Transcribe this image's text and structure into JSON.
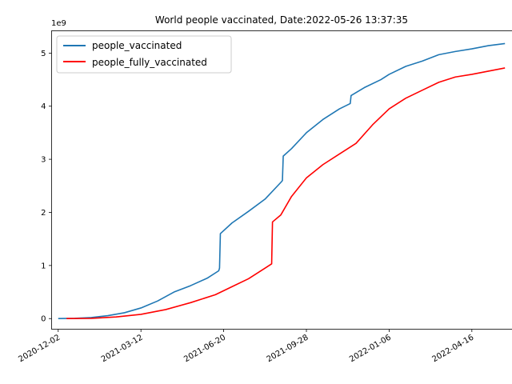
{
  "chart_data": {
    "type": "line",
    "title": "World people vaccinated, Date:2022-05-26 13:37:35",
    "xlabel": "",
    "ylabel": "",
    "y_multiplier_label": "1e9",
    "ylim": [
      -0.2,
      5.42
    ],
    "xlim": [
      "2020-11-24",
      "2022-06-04"
    ],
    "grid": false,
    "legend_position": "top-left",
    "x_ticks": [
      "2020-12-02",
      "2021-03-12",
      "2021-06-20",
      "2021-09-28",
      "2022-01-06",
      "2022-04-16"
    ],
    "y_ticks": [
      0,
      1,
      2,
      3,
      4,
      5
    ],
    "series": [
      {
        "name": "people_vaccinated",
        "color": "#1f77b4",
        "points": [
          [
            "2020-12-02",
            0.0
          ],
          [
            "2020-12-22",
            0.005
          ],
          [
            "2021-01-11",
            0.02
          ],
          [
            "2021-01-31",
            0.055
          ],
          [
            "2021-02-20",
            0.11
          ],
          [
            "2021-03-12",
            0.2
          ],
          [
            "2021-04-01",
            0.33
          ],
          [
            "2021-04-21",
            0.5
          ],
          [
            "2021-05-11",
            0.62
          ],
          [
            "2021-05-31",
            0.76
          ],
          [
            "2021-06-14",
            0.9
          ],
          [
            "2021-06-15",
            0.95
          ],
          [
            "2021-06-16",
            1.6
          ],
          [
            "2021-06-30",
            1.8
          ],
          [
            "2021-07-20",
            2.02
          ],
          [
            "2021-08-09",
            2.25
          ],
          [
            "2021-08-29",
            2.58
          ],
          [
            "2021-08-30",
            2.6
          ],
          [
            "2021-08-31",
            3.06
          ],
          [
            "2021-09-10",
            3.2
          ],
          [
            "2021-09-28",
            3.5
          ],
          [
            "2021-10-18",
            3.75
          ],
          [
            "2021-11-07",
            3.95
          ],
          [
            "2021-11-20",
            4.05
          ],
          [
            "2021-11-21",
            4.2
          ],
          [
            "2021-12-07",
            4.35
          ],
          [
            "2021-12-27",
            4.5
          ],
          [
            "2022-01-06",
            4.6
          ],
          [
            "2022-01-26",
            4.75
          ],
          [
            "2022-02-15",
            4.85
          ],
          [
            "2022-03-07",
            4.97
          ],
          [
            "2022-03-27",
            5.03
          ],
          [
            "2022-04-16",
            5.08
          ],
          [
            "2022-05-06",
            5.14
          ],
          [
            "2022-05-26",
            5.18
          ]
        ]
      },
      {
        "name": "people_fully_vaccinated",
        "color": "#ff0000",
        "points": [
          [
            "2020-12-12",
            0.0
          ],
          [
            "2021-01-11",
            0.005
          ],
          [
            "2021-02-10",
            0.03
          ],
          [
            "2021-03-12",
            0.08
          ],
          [
            "2021-04-11",
            0.17
          ],
          [
            "2021-05-11",
            0.3
          ],
          [
            "2021-06-10",
            0.45
          ],
          [
            "2021-06-30",
            0.6
          ],
          [
            "2021-07-20",
            0.75
          ],
          [
            "2021-08-09",
            0.95
          ],
          [
            "2021-08-17",
            1.03
          ],
          [
            "2021-08-18",
            1.82
          ],
          [
            "2021-08-28",
            1.95
          ],
          [
            "2021-09-10",
            2.3
          ],
          [
            "2021-09-28",
            2.65
          ],
          [
            "2021-10-18",
            2.9
          ],
          [
            "2021-11-07",
            3.1
          ],
          [
            "2021-11-27",
            3.3
          ],
          [
            "2021-12-17",
            3.65
          ],
          [
            "2022-01-06",
            3.95
          ],
          [
            "2022-01-26",
            4.15
          ],
          [
            "2022-02-15",
            4.3
          ],
          [
            "2022-03-07",
            4.45
          ],
          [
            "2022-03-27",
            4.55
          ],
          [
            "2022-04-16",
            4.6
          ],
          [
            "2022-05-06",
            4.66
          ],
          [
            "2022-05-26",
            4.72
          ]
        ]
      }
    ]
  }
}
